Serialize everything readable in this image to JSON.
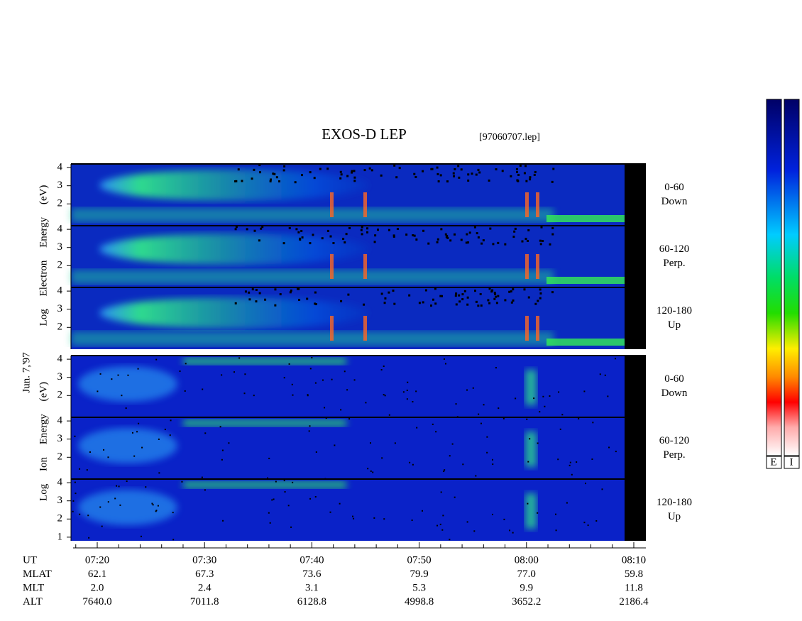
{
  "title": "EXOS-D LEP",
  "file": "[97060707.lep]",
  "date": "Jun. 7,'97",
  "electron_axis_label": "Log Electron Energy (eV)",
  "ion_axis_label": "Log Ion Energy (eV)",
  "electron_panels": [
    {
      "angle": "0-60",
      "direction": "Down",
      "yticks": [
        "2",
        "3",
        "4"
      ]
    },
    {
      "angle": "60-120",
      "direction": "Perp.",
      "yticks": [
        "2",
        "3",
        "4"
      ]
    },
    {
      "angle": "120-180",
      "direction": "Up",
      "yticks": [
        "2",
        "3",
        "4"
      ]
    }
  ],
  "ion_panels": [
    {
      "angle": "0-60",
      "direction": "Down",
      "yticks": [
        "2",
        "3",
        "4"
      ]
    },
    {
      "angle": "60-120",
      "direction": "Perp.",
      "yticks": [
        "2",
        "3",
        "4"
      ]
    },
    {
      "angle": "120-180",
      "direction": "Up",
      "yticks": [
        "1",
        "2",
        "3",
        "4"
      ]
    }
  ],
  "ephemeris": {
    "row_labels": [
      "UT",
      "MLAT",
      "MLT",
      "ALT"
    ],
    "columns": [
      [
        "07:20",
        "62.1",
        "2.0",
        "7640.0"
      ],
      [
        "07:30",
        "67.3",
        "2.4",
        "7011.8"
      ],
      [
        "07:40",
        "73.6",
        "3.1",
        "6128.8"
      ],
      [
        "07:50",
        "79.9",
        "5.3",
        "4998.8"
      ],
      [
        "08:00",
        "77.0",
        "9.9",
        "3652.2"
      ],
      [
        "08:10",
        "59.8",
        "11.8",
        "2186.4"
      ]
    ]
  },
  "colorbar_labels": [
    "E",
    "I"
  ]
}
